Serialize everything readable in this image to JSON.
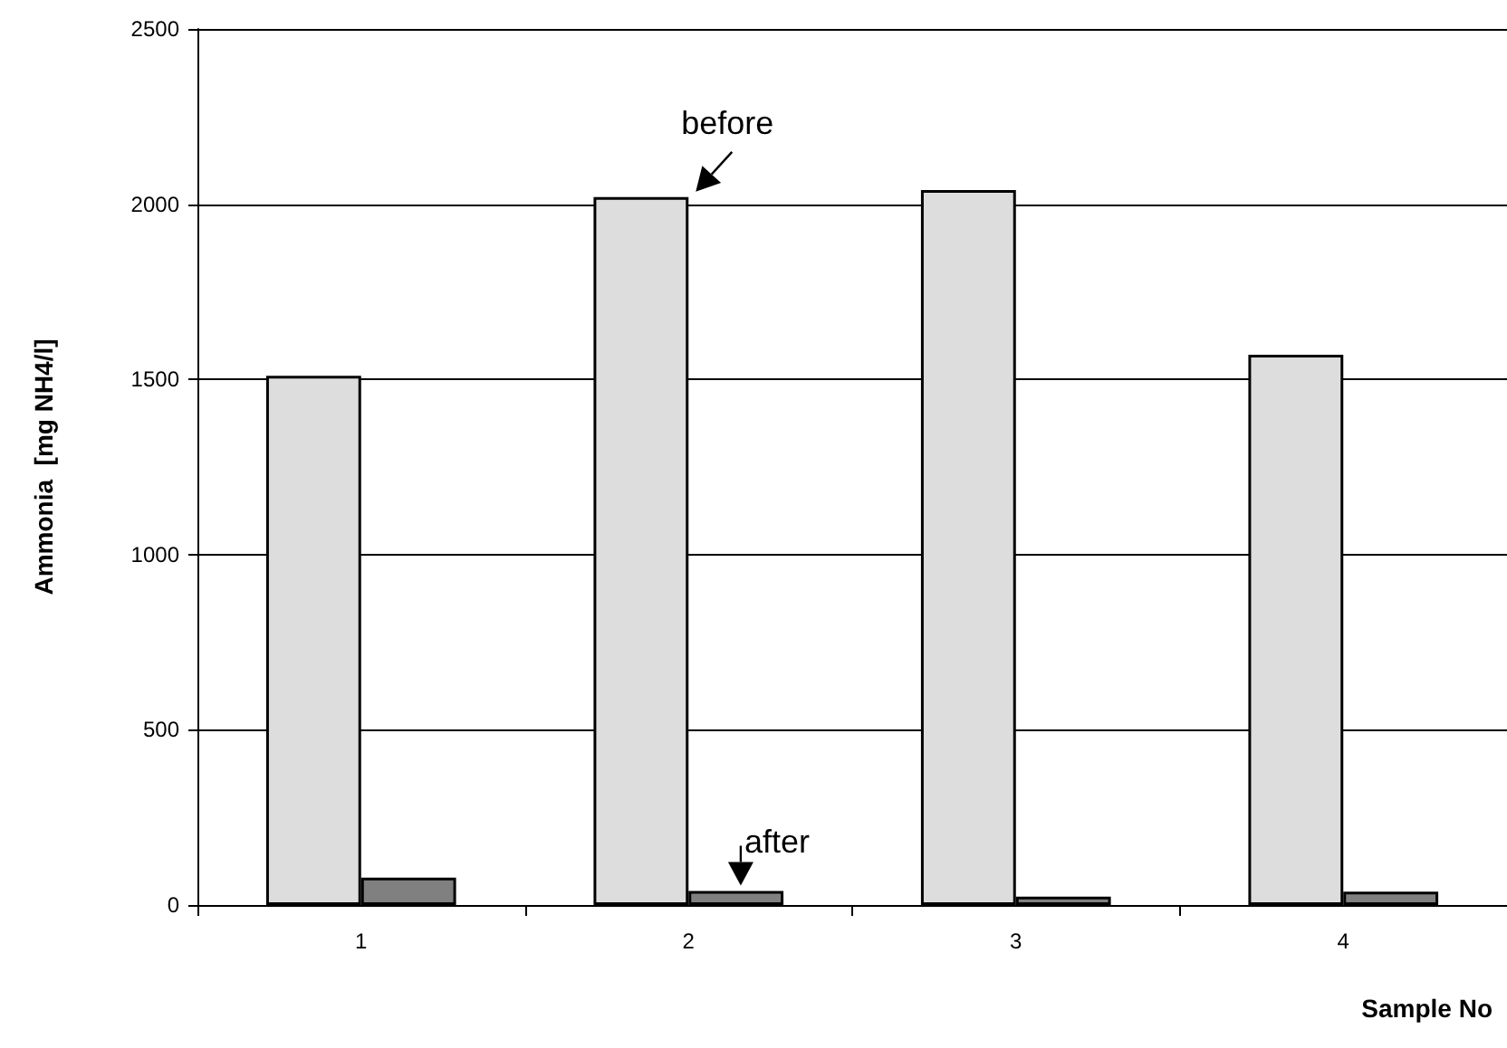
{
  "chart_data": {
    "type": "bar",
    "xlabel": "Sample No",
    "ylabel": "Ammonia  [mg NH4/l]",
    "categories": [
      "1",
      "2",
      "3",
      "4"
    ],
    "series": [
      {
        "color": "#dddddd",
        "values": [
          1510,
          2020,
          2040,
          1570
        ]
      },
      {
        "color": "#808080",
        "values": [
          78,
          40,
          24,
          38
        ]
      }
    ],
    "ylim": [
      0,
      2500
    ],
    "yticks": [
      0,
      500,
      1000,
      1500,
      2000,
      2500
    ],
    "grid": "y",
    "annotations": [
      {
        "text": "before",
        "x": "2",
        "y": 2020
      },
      {
        "text": "after",
        "x": "2",
        "y": 40
      }
    ]
  }
}
